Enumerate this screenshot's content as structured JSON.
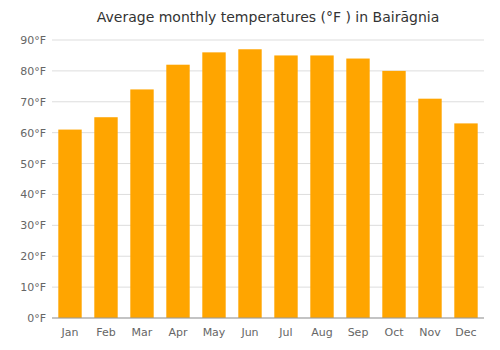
{
  "chart_data": {
    "type": "bar",
    "title": "Average monthly temperatures (°F ) in Bairāgnia",
    "categories": [
      "Jan",
      "Feb",
      "Mar",
      "Apr",
      "May",
      "Jun",
      "Jul",
      "Aug",
      "Sep",
      "Oct",
      "Nov",
      "Dec"
    ],
    "values": [
      61,
      65,
      74,
      82,
      86,
      87,
      85,
      85,
      84,
      80,
      71,
      63
    ],
    "color": "#FFA500",
    "ylim": [
      0,
      90
    ],
    "yticks": [
      {
        "value": 0,
        "label": "0°F"
      },
      {
        "value": 10,
        "label": "10°F"
      },
      {
        "value": 20,
        "label": "20°F"
      },
      {
        "value": 30,
        "label": "30°F"
      },
      {
        "value": 40,
        "label": "40°F"
      },
      {
        "value": 50,
        "label": "50°F"
      },
      {
        "value": 60,
        "label": "60°F"
      },
      {
        "value": 70,
        "label": "70°F"
      },
      {
        "value": 80,
        "label": "80°F"
      },
      {
        "value": 90,
        "label": "90°F"
      }
    ],
    "grid": true
  }
}
